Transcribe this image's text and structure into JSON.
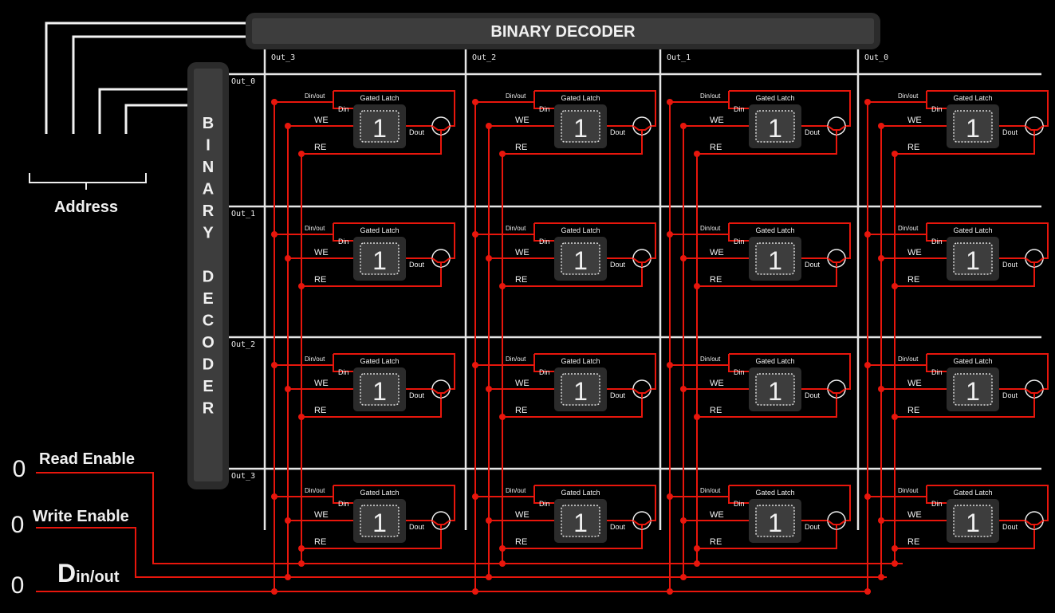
{
  "top_decoder": {
    "label": "BINARY DECODER"
  },
  "side_decoder": {
    "label": "BINARY DECODER",
    "letters": [
      "B",
      "I",
      "N",
      "A",
      "R",
      "Y",
      "",
      "D",
      "E",
      "C",
      "O",
      "D",
      "E",
      "R"
    ]
  },
  "address": {
    "label": "Address"
  },
  "columns": [
    "Out_3",
    "Out_2",
    "Out_1",
    "Out_0"
  ],
  "rows": [
    "Out_0",
    "Out_1",
    "Out_2",
    "Out_3"
  ],
  "cell": {
    "title": "Gated Latch",
    "value": "1",
    "din_out_label": "Din/out",
    "din_label": "Din",
    "we_label": "WE",
    "re_label": "RE",
    "dout_label": "Dout"
  },
  "inputs": [
    {
      "name": "Read Enable",
      "value": "0"
    },
    {
      "name": "Write Enable",
      "value": "0"
    },
    {
      "name": "Din/out",
      "main": "D",
      "sub": "in/out",
      "value": "0"
    }
  ],
  "colors": {
    "background": "#000000",
    "wire": "#e8160c",
    "bus": "#f2f2f2",
    "block": "#2b2b2b",
    "block_inner": "#3d3d3d"
  }
}
